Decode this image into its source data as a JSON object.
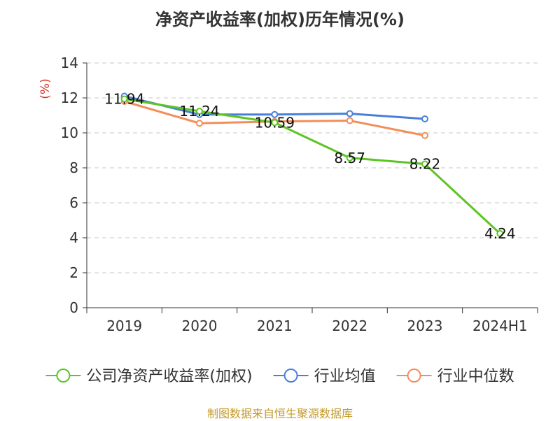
{
  "chart_data": {
    "type": "line",
    "title": "净资产收益率(加权)历年情况(%)",
    "ylabel": "(%)",
    "ylim": [
      0,
      14
    ],
    "yticks": [
      0,
      2,
      4,
      6,
      8,
      10,
      12,
      14
    ],
    "grid": true,
    "legend_position": "bottom",
    "categories": [
      "2019",
      "2020",
      "2021",
      "2022",
      "2023",
      "2024H1"
    ],
    "series": [
      {
        "name": "公司净资产收益率(加权)",
        "color": "#5cc524",
        "values": [
          11.94,
          11.24,
          10.59,
          8.57,
          8.22,
          4.24
        ],
        "labels": [
          "11.94",
          "11.24",
          "10.59",
          "8.57",
          "8.22",
          "4.24"
        ]
      },
      {
        "name": "行业均值",
        "color": "#4a7fd9",
        "values": [
          12.1,
          11.05,
          11.05,
          11.1,
          10.8,
          null
        ]
      },
      {
        "name": "行业中位数",
        "color": "#f28e5a",
        "values": [
          11.8,
          10.55,
          10.65,
          10.7,
          9.85,
          null
        ]
      }
    ]
  },
  "source": "制图数据来自恒生聚源数据库"
}
